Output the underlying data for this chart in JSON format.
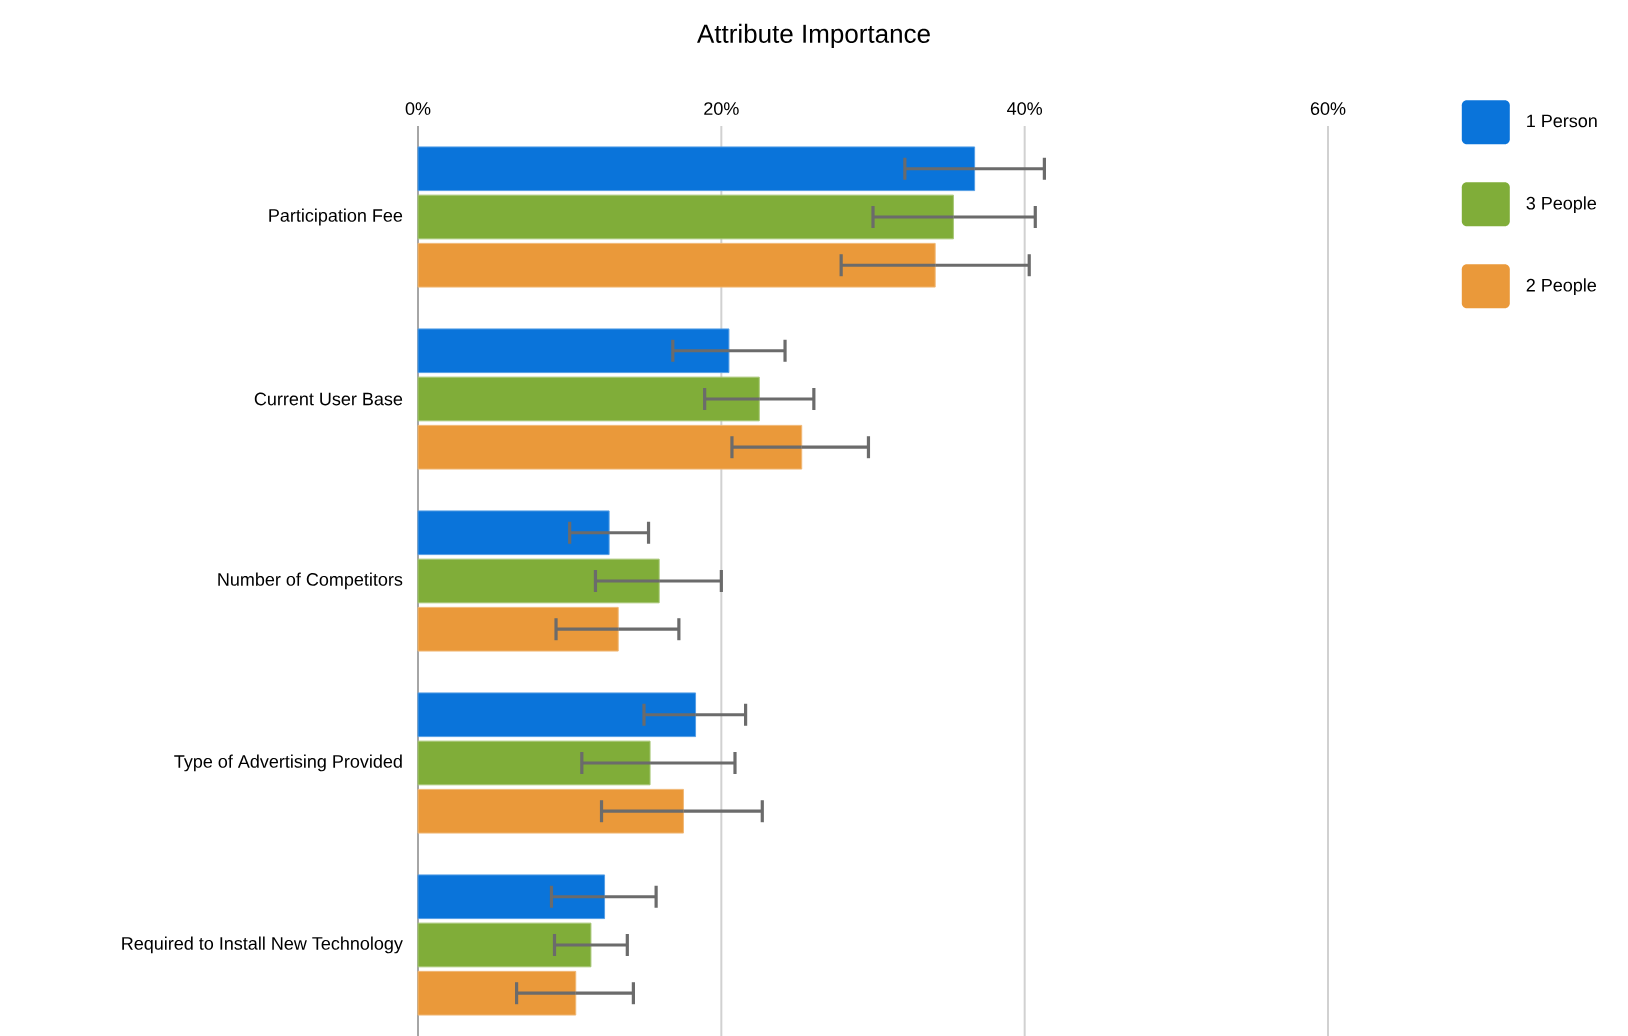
{
  "chart_data": {
    "type": "bar",
    "orientation": "horizontal",
    "title": "Attribute Importance",
    "categories": [
      "Participation Fee",
      "Current User Base",
      "Number of Competitors",
      "Type of Advertising Provided",
      "Required to Install New Technology"
    ],
    "series": [
      {
        "name": "1 Person",
        "color": "#0a74da",
        "values": [
          36.7,
          20.5,
          12.6,
          18.3,
          12.3
        ],
        "errors": [
          [
            32.1,
            41.3
          ],
          [
            16.8,
            24.2
          ],
          [
            10.0,
            15.2
          ],
          [
            14.9,
            21.6
          ],
          [
            8.8,
            15.7
          ]
        ]
      },
      {
        "name": "3 People",
        "color": "#80ad39",
        "values": [
          35.3,
          22.5,
          15.9,
          15.3,
          11.4
        ],
        "errors": [
          [
            30.0,
            40.7
          ],
          [
            18.9,
            26.1
          ],
          [
            11.7,
            20.0
          ],
          [
            10.8,
            20.9
          ],
          [
            9.0,
            13.8
          ]
        ]
      },
      {
        "name": "2 People",
        "color": "#ea993a",
        "values": [
          34.1,
          25.3,
          13.2,
          17.5,
          10.4
        ],
        "errors": [
          [
            27.9,
            40.3
          ],
          [
            20.7,
            29.7
          ],
          [
            9.1,
            17.2
          ],
          [
            12.1,
            22.7
          ],
          [
            6.5,
            14.2
          ]
        ]
      }
    ],
    "xlim": [
      0,
      60
    ],
    "xticks": [
      {
        "value": 0,
        "label": "0%"
      },
      {
        "value": 20,
        "label": "20%"
      },
      {
        "value": 40,
        "label": "40%"
      },
      {
        "value": 60,
        "label": "60%"
      }
    ],
    "grid": "x",
    "legend": "top right"
  }
}
